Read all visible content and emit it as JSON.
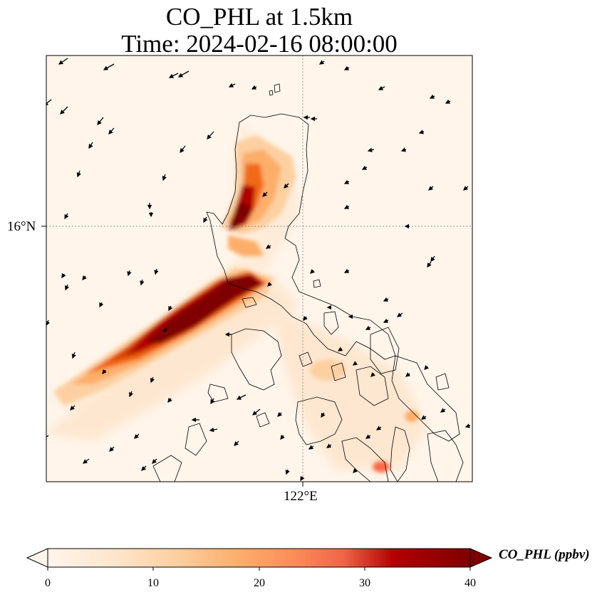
{
  "title_line1": "CO_PHL at 1.5km",
  "title_line2": "Time: 2024-02-16 08:00:00",
  "lat_label": "16°N",
  "lon_label": "122°E",
  "colorbar": {
    "label": "CO_PHL (ppbv)",
    "ticks": [
      "0",
      "10",
      "20",
      "30",
      "40"
    ],
    "min": 0,
    "max": 40,
    "extend": "both",
    "colormap": [
      "#fff5eb",
      "#fee6ce",
      "#fdd0a2",
      "#fdae6b",
      "#fd8d3c",
      "#f16913",
      "#d94801",
      "#a30000",
      "#7f0000"
    ]
  },
  "map": {
    "colormap_name": "OrRd-like",
    "plume_color_high": "#7f0000",
    "background_color": "#fff5eb",
    "coastline_color": "#000000",
    "gridline_style": "dotted"
  }
}
